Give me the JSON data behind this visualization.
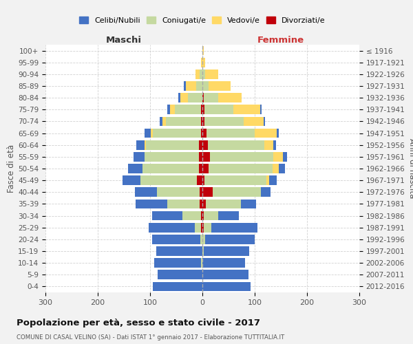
{
  "age_groups": [
    "0-4",
    "5-9",
    "10-14",
    "15-19",
    "20-24",
    "25-29",
    "30-34",
    "35-39",
    "40-44",
    "45-49",
    "50-54",
    "55-59",
    "60-64",
    "65-69",
    "70-74",
    "75-79",
    "80-84",
    "85-89",
    "90-94",
    "95-99",
    "100+"
  ],
  "birth_years": [
    "2012-2016",
    "2007-2011",
    "2002-2006",
    "1997-2001",
    "1992-1996",
    "1987-1991",
    "1982-1986",
    "1977-1981",
    "1972-1976",
    "1967-1971",
    "1962-1966",
    "1957-1961",
    "1952-1956",
    "1947-1951",
    "1942-1946",
    "1937-1941",
    "1932-1936",
    "1927-1931",
    "1922-1926",
    "1917-1921",
    "≤ 1916"
  ],
  "colors": {
    "celibe": "#4472C4",
    "coniugato": "#C5D9A0",
    "vedovo": "#FFD966",
    "divorziato": "#C0000A"
  },
  "maschi": {
    "celibe": [
      95,
      85,
      90,
      88,
      92,
      88,
      58,
      60,
      42,
      35,
      28,
      20,
      16,
      12,
      6,
      5,
      4,
      3,
      0,
      0,
      0
    ],
    "coniugato": [
      0,
      0,
      2,
      0,
      4,
      12,
      36,
      62,
      82,
      108,
      108,
      105,
      102,
      92,
      68,
      50,
      28,
      12,
      5,
      0,
      0
    ],
    "vedovo": [
      0,
      0,
      0,
      0,
      0,
      0,
      0,
      0,
      0,
      0,
      0,
      0,
      2,
      4,
      6,
      10,
      14,
      20,
      8,
      2,
      0
    ],
    "divorziato": [
      0,
      0,
      0,
      0,
      0,
      2,
      2,
      5,
      5,
      10,
      6,
      6,
      6,
      3,
      2,
      2,
      0,
      0,
      0,
      0,
      0
    ]
  },
  "femmine": {
    "nubile": [
      92,
      88,
      82,
      88,
      95,
      88,
      40,
      28,
      18,
      15,
      12,
      8,
      5,
      4,
      3,
      2,
      0,
      0,
      0,
      0,
      0
    ],
    "coniugata": [
      0,
      0,
      0,
      2,
      5,
      15,
      28,
      68,
      92,
      118,
      122,
      122,
      108,
      92,
      75,
      55,
      28,
      12,
      5,
      0,
      0
    ],
    "vedova": [
      0,
      0,
      0,
      0,
      0,
      0,
      0,
      0,
      0,
      5,
      12,
      18,
      18,
      42,
      38,
      52,
      45,
      42,
      25,
      5,
      2
    ],
    "divorziata": [
      0,
      0,
      0,
      0,
      0,
      2,
      2,
      6,
      20,
      4,
      12,
      14,
      10,
      8,
      4,
      4,
      2,
      0,
      0,
      0,
      0
    ]
  },
  "xlim": 300,
  "title": "Popolazione per età, sesso e stato civile - 2017",
  "subtitle": "COMUNE DI CASAL VELINO (SA) - Dati ISTAT 1° gennaio 2017 - Elaborazione TUTTITALIA.IT",
  "xlabel_left": "Maschi",
  "xlabel_right": "Femmine",
  "ylabel_left": "Fasce di età",
  "ylabel_right": "Anni di nascita",
  "legend_labels": [
    "Celibi/Nubili",
    "Coniugati/e",
    "Vedovi/e",
    "Divorziati/e"
  ],
  "bg_color": "#F2F2F2",
  "plot_bg_color": "#FFFFFF",
  "grid_color": "#CCCCCC"
}
